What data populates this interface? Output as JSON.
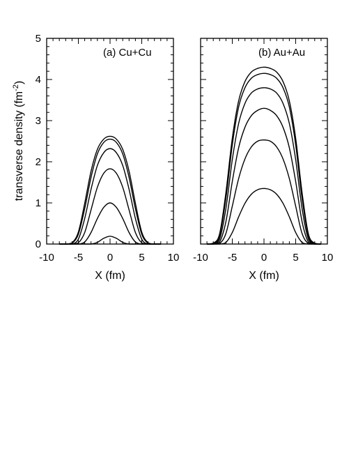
{
  "chart_data": [
    {
      "type": "line",
      "title": "(a) Cu+Cu",
      "xlabel": "X (fm)",
      "ylabel": "transverse density (fm",
      "ylabel_sup": "-2",
      "ylabel_close": ")",
      "xlim": [
        -10,
        10
      ],
      "ylim": [
        0,
        5
      ],
      "xticks": [
        -10,
        -5,
        0,
        5,
        10
      ],
      "xtick_labels": [
        "-10",
        "-5",
        "0",
        "5",
        "10"
      ],
      "yticks": [
        0,
        1,
        2,
        3,
        4,
        5
      ],
      "ytick_labels": [
        "0",
        "1",
        "2",
        "3",
        "4",
        "5"
      ],
      "x": [
        -8,
        -7,
        -6,
        -5,
        -4,
        -3,
        -2,
        -1,
        0,
        1,
        2,
        3,
        4,
        5,
        6,
        7,
        8
      ],
      "series": [
        {
          "values": [
            0,
            0,
            0.03,
            0.29,
            0.99,
            1.77,
            2.3,
            2.55,
            2.62,
            2.55,
            2.3,
            1.77,
            0.99,
            0.29,
            0.03,
            0,
            0
          ]
        },
        {
          "values": [
            0,
            0,
            0.02,
            0.24,
            0.86,
            1.62,
            2.19,
            2.47,
            2.55,
            2.47,
            2.19,
            1.62,
            0.86,
            0.24,
            0.02,
            0,
            0
          ]
        },
        {
          "values": [
            0,
            0,
            0,
            0.12,
            0.62,
            1.33,
            1.91,
            2.22,
            2.32,
            2.22,
            1.91,
            1.33,
            0.62,
            0.12,
            0,
            0,
            0
          ]
        },
        {
          "values": [
            0,
            0,
            0,
            0.03,
            0.28,
            0.83,
            1.38,
            1.72,
            1.83,
            1.72,
            1.38,
            0.83,
            0.28,
            0.03,
            0,
            0,
            0
          ]
        },
        {
          "values": [
            0,
            0,
            0,
            0,
            0.05,
            0.28,
            0.62,
            0.89,
            1.0,
            0.89,
            0.62,
            0.28,
            0.05,
            0,
            0,
            0,
            0
          ]
        },
        {
          "values": [
            0,
            0,
            0,
            0,
            0,
            0,
            0.04,
            0.14,
            0.19,
            0.14,
            0.04,
            0,
            0,
            0,
            0,
            0,
            0
          ]
        }
      ]
    },
    {
      "type": "line",
      "title": "(b) Au+Au",
      "xlabel": "X (fm)",
      "xlim": [
        -10,
        10
      ],
      "ylim": [
        0,
        5
      ],
      "xticks": [
        -10,
        -5,
        0,
        5,
        10
      ],
      "xtick_labels": [
        "-10",
        "-5",
        "0",
        "5",
        "10"
      ],
      "yticks": [
        0,
        1,
        2,
        3,
        4,
        5
      ],
      "x": [
        -9,
        -8,
        -7,
        -6,
        -5,
        -4,
        -3,
        -2,
        -1,
        0,
        1,
        2,
        3,
        4,
        5,
        6,
        7,
        8,
        9
      ],
      "series": [
        {
          "values": [
            0,
            0.02,
            0.25,
            1.26,
            2.57,
            3.48,
            3.95,
            4.18,
            4.27,
            4.3,
            4.27,
            4.18,
            3.95,
            3.48,
            2.57,
            1.26,
            0.25,
            0.02,
            0
          ]
        },
        {
          "values": [
            0,
            0.01,
            0.2,
            1.12,
            2.41,
            3.33,
            3.8,
            4.03,
            4.12,
            4.15,
            4.12,
            4.03,
            3.8,
            3.33,
            2.41,
            1.12,
            0.2,
            0.01,
            0
          ]
        },
        {
          "values": [
            0,
            0,
            0.12,
            0.87,
            2.05,
            2.93,
            3.42,
            3.67,
            3.77,
            3.8,
            3.77,
            3.67,
            3.42,
            2.93,
            2.05,
            0.87,
            0.12,
            0,
            0
          ]
        },
        {
          "values": [
            0,
            0,
            0.05,
            0.55,
            1.52,
            2.34,
            2.84,
            3.12,
            3.25,
            3.3,
            3.25,
            3.12,
            2.84,
            2.34,
            1.52,
            0.55,
            0.05,
            0,
            0
          ]
        },
        {
          "values": [
            0,
            0,
            0.01,
            0.26,
            0.92,
            1.59,
            2.07,
            2.36,
            2.5,
            2.53,
            2.5,
            2.36,
            2.07,
            1.59,
            0.92,
            0.26,
            0.01,
            0,
            0
          ]
        },
        {
          "values": [
            0,
            0,
            0,
            0.04,
            0.28,
            0.66,
            0.99,
            1.21,
            1.32,
            1.35,
            1.32,
            1.21,
            0.99,
            0.66,
            0.28,
            0.04,
            0,
            0,
            0
          ]
        }
      ]
    }
  ]
}
